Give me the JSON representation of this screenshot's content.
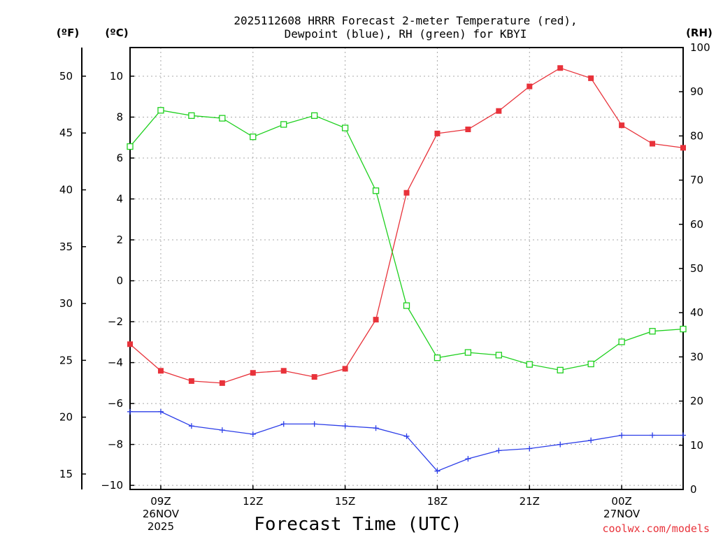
{
  "title_line1": "2025112608 HRRR Forecast 2-meter Temperature (red),",
  "title_line2": "Dewpoint (blue), RH (green) for KBYI",
  "credit": "coolwx.com/models",
  "colors": {
    "temperature": "#e8323a",
    "dewpoint": "#2c3ee8",
    "rh": "#1ed01e",
    "credit": "#e8323a"
  },
  "chart_data": {
    "type": "line",
    "xlabel": "Forecast Time (UTC)",
    "x": [
      8,
      9,
      10,
      11,
      12,
      13,
      14,
      15,
      16,
      17,
      18,
      19,
      20,
      21,
      22,
      23,
      24,
      25,
      26
    ],
    "xlim": [
      8,
      26
    ],
    "x_ticks": [
      {
        "x": 9,
        "lines": [
          "09Z",
          "26NOV",
          "2025"
        ]
      },
      {
        "x": 12,
        "lines": [
          "12Z"
        ]
      },
      {
        "x": 15,
        "lines": [
          "15Z"
        ]
      },
      {
        "x": 18,
        "lines": [
          "18Z"
        ]
      },
      {
        "x": 21,
        "lines": [
          "21Z"
        ]
      },
      {
        "x": 24,
        "lines": [
          "00Z",
          "27NOV"
        ]
      }
    ],
    "axes": {
      "celsius": {
        "unit_label": "(ºC)",
        "ylim": [
          -10.2,
          11.4
        ],
        "ticks": [
          -10,
          -8,
          -6,
          -4,
          -2,
          0,
          2,
          4,
          6,
          8,
          10
        ]
      },
      "fahrenheit": {
        "unit_label": "(ºF)",
        "ticks": [
          15,
          20,
          25,
          30,
          35,
          40,
          45,
          50
        ]
      },
      "rh": {
        "unit_label": "(RH)",
        "ylim": [
          0,
          100
        ],
        "ticks": [
          0,
          10,
          20,
          30,
          40,
          50,
          60,
          70,
          80,
          90,
          100
        ]
      }
    },
    "series": [
      {
        "name": "Temperature",
        "axis": "celsius",
        "marker": "filled-square",
        "values": [
          -3.1,
          -4.4,
          -4.9,
          -5.0,
          -4.5,
          -4.4,
          -4.7,
          -4.3,
          -1.9,
          4.3,
          7.2,
          7.4,
          8.3,
          9.5,
          10.4,
          9.9,
          7.6,
          6.7,
          6.5
        ]
      },
      {
        "name": "Dewpoint",
        "axis": "celsius",
        "marker": "plus",
        "values": [
          -6.4,
          -6.4,
          -7.1,
          -7.3,
          -7.5,
          -7.0,
          -7.0,
          -7.1,
          -7.2,
          -7.6,
          -9.3,
          -8.7,
          -8.3,
          -8.2,
          -8.0,
          -7.8,
          -7.55,
          -7.55,
          -7.55
        ]
      },
      {
        "name": "RH",
        "axis": "rh",
        "marker": "open-square",
        "values": [
          77.6,
          85.8,
          84.6,
          84.0,
          79.8,
          82.6,
          84.6,
          81.8,
          67.6,
          41.6,
          29.8,
          31.0,
          30.4,
          28.3,
          27.0,
          28.4,
          33.4,
          35.8,
          36.3
        ]
      }
    ]
  }
}
